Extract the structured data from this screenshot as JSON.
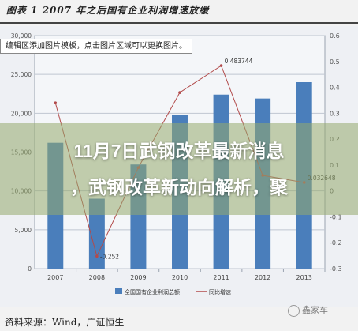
{
  "title": "图表 1 2007 年之后国有企业利润增速放缓",
  "edit_hint": "编辑区添加图片模板，点击图片区域可以更换图片。",
  "headline_line1": "11月7日武钢改革最新消息",
  "headline_line2": "，武钢改革新动向解析，聚",
  "source": "资料来源：Wind，广证恒生",
  "watermark": "鑫家车",
  "colors": {
    "bar": "#4a7ebb",
    "line": "#b24b4b",
    "grid": "#bfc6d1"
  },
  "chart_data": {
    "type": "bar",
    "categories": [
      "2007",
      "2008",
      "2009",
      "2010",
      "2011",
      "2012",
      "2013"
    ],
    "series": [
      {
        "name": "全国国有企业利润总额",
        "axis": "left",
        "type": "bar",
        "values": [
          16200,
          9000,
          13400,
          19800,
          22400,
          21900,
          24000
        ]
      },
      {
        "name": "同比增速",
        "axis": "right",
        "type": "line",
        "values": [
          0.34,
          -0.252,
          0.09,
          0.38,
          0.483744,
          0.06,
          0.032648
        ]
      }
    ],
    "y_left": {
      "ylim": [
        0,
        30000
      ],
      "ticks": [
        "0",
        "5,000",
        "10,000",
        "15,000",
        "20,000",
        "25,000",
        "30,000"
      ]
    },
    "y_right": {
      "ylim": [
        -0.3,
        0.6
      ],
      "ticks": [
        "-0.3",
        "-0.2",
        "-0.1",
        "0",
        "0.1",
        "0.2",
        "0.3",
        "0.4",
        "0.5",
        "0.6"
      ]
    },
    "data_labels": [
      {
        "series": 1,
        "index": 1,
        "text": "-0.252"
      },
      {
        "series": 1,
        "index": 4,
        "text": "0.483744"
      },
      {
        "series": 1,
        "index": 6,
        "text": "0.032648"
      }
    ],
    "legend_position": "bottom",
    "grid": true
  }
}
